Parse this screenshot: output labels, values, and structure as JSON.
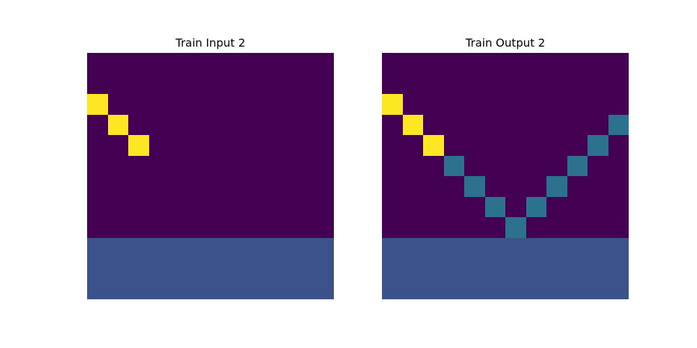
{
  "palette": {
    "0": "#440154",
    "1": "#3b528b",
    "2": "#2c728e",
    "3": "#fde725"
  },
  "panels": [
    {
      "title": "Train Input 2",
      "grid": [
        [
          0,
          0,
          0,
          0,
          0,
          0,
          0,
          0,
          0,
          0,
          0,
          0
        ],
        [
          0,
          0,
          0,
          0,
          0,
          0,
          0,
          0,
          0,
          0,
          0,
          0
        ],
        [
          3,
          0,
          0,
          0,
          0,
          0,
          0,
          0,
          0,
          0,
          0,
          0
        ],
        [
          0,
          3,
          0,
          0,
          0,
          0,
          0,
          0,
          0,
          0,
          0,
          0
        ],
        [
          0,
          0,
          3,
          0,
          0,
          0,
          0,
          0,
          0,
          0,
          0,
          0
        ],
        [
          0,
          0,
          0,
          0,
          0,
          0,
          0,
          0,
          0,
          0,
          0,
          0
        ],
        [
          0,
          0,
          0,
          0,
          0,
          0,
          0,
          0,
          0,
          0,
          0,
          0
        ],
        [
          0,
          0,
          0,
          0,
          0,
          0,
          0,
          0,
          0,
          0,
          0,
          0
        ],
        [
          0,
          0,
          0,
          0,
          0,
          0,
          0,
          0,
          0,
          0,
          0,
          0
        ],
        [
          1,
          1,
          1,
          1,
          1,
          1,
          1,
          1,
          1,
          1,
          1,
          1
        ],
        [
          1,
          1,
          1,
          1,
          1,
          1,
          1,
          1,
          1,
          1,
          1,
          1
        ],
        [
          1,
          1,
          1,
          1,
          1,
          1,
          1,
          1,
          1,
          1,
          1,
          1
        ]
      ]
    },
    {
      "title": "Train Output 2",
      "grid": [
        [
          0,
          0,
          0,
          0,
          0,
          0,
          0,
          0,
          0,
          0,
          0,
          0
        ],
        [
          0,
          0,
          0,
          0,
          0,
          0,
          0,
          0,
          0,
          0,
          0,
          0
        ],
        [
          3,
          0,
          0,
          0,
          0,
          0,
          0,
          0,
          0,
          0,
          0,
          0
        ],
        [
          0,
          3,
          0,
          0,
          0,
          0,
          0,
          0,
          0,
          0,
          0,
          2
        ],
        [
          0,
          0,
          3,
          0,
          0,
          0,
          0,
          0,
          0,
          0,
          2,
          0
        ],
        [
          0,
          0,
          0,
          2,
          0,
          0,
          0,
          0,
          0,
          2,
          0,
          0
        ],
        [
          0,
          0,
          0,
          0,
          2,
          0,
          0,
          0,
          2,
          0,
          0,
          0
        ],
        [
          0,
          0,
          0,
          0,
          0,
          2,
          0,
          2,
          0,
          0,
          0,
          0
        ],
        [
          0,
          0,
          0,
          0,
          0,
          0,
          2,
          0,
          0,
          0,
          0,
          0
        ],
        [
          1,
          1,
          1,
          1,
          1,
          1,
          1,
          1,
          1,
          1,
          1,
          1
        ],
        [
          1,
          1,
          1,
          1,
          1,
          1,
          1,
          1,
          1,
          1,
          1,
          1
        ],
        [
          1,
          1,
          1,
          1,
          1,
          1,
          1,
          1,
          1,
          1,
          1,
          1
        ]
      ]
    }
  ]
}
